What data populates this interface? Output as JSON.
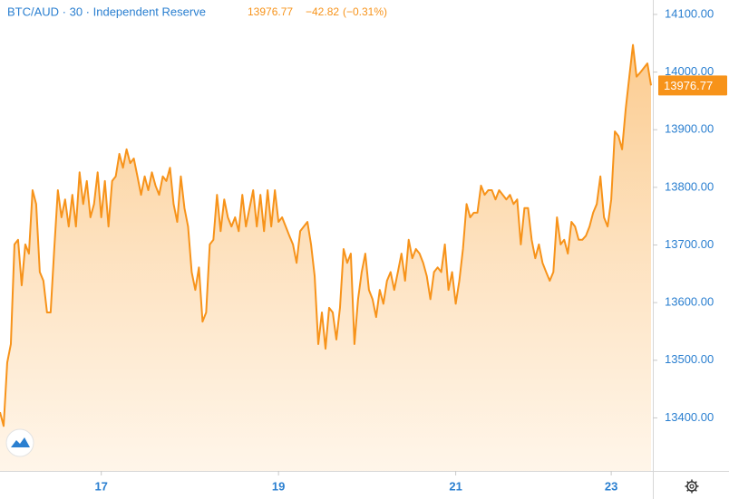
{
  "chart_data": {
    "type": "area",
    "title": "BTC/AUD · 30 · Independent Reserve",
    "change": "−42.82",
    "change_pct": "(−0.31%)",
    "categories": [
      null,
      null,
      null,
      null,
      null,
      null,
      null,
      null,
      null,
      null,
      null,
      null,
      null,
      null,
      null,
      null,
      null,
      null,
      null,
      null,
      null,
      null,
      null,
      null,
      null,
      null,
      null,
      null,
      "17",
      null,
      null,
      null,
      null,
      null,
      null,
      null,
      null,
      null,
      null,
      null,
      null,
      null,
      null,
      null,
      null,
      null,
      null,
      null,
      null,
      null,
      null,
      null,
      null,
      null,
      null,
      null,
      null,
      null,
      null,
      null,
      null,
      null,
      null,
      null,
      null,
      null,
      null,
      null,
      null,
      null,
      null,
      null,
      null,
      null,
      null,
      null,
      null,
      "19",
      null,
      null,
      null,
      null,
      null,
      null,
      null,
      null,
      null,
      null,
      null,
      null,
      null,
      null,
      null,
      null,
      null,
      null,
      null,
      null,
      null,
      null,
      null,
      null,
      null,
      null,
      null,
      null,
      null,
      null,
      null,
      null,
      null,
      null,
      null,
      null,
      null,
      null,
      null,
      null,
      null,
      null,
      null,
      null,
      null,
      null,
      null,
      null,
      "21",
      null,
      null,
      null,
      null,
      null,
      null,
      null,
      null,
      null,
      null,
      null,
      null,
      null,
      null,
      null,
      null,
      null,
      null,
      null,
      null,
      null,
      null,
      null,
      null,
      null,
      null,
      null,
      null,
      null,
      null,
      null,
      null,
      null,
      null,
      null,
      null,
      null,
      null,
      null,
      null,
      null,
      null,
      "23",
      null,
      null,
      null,
      null,
      null,
      null,
      null,
      null,
      null,
      null,
      null
    ],
    "series": [
      {
        "name": "BTC/AUD",
        "color": "#f7931a",
        "fill": "#fbc98a",
        "values": [
          13410,
          13386,
          13496,
          13528,
          13701,
          13709,
          13630,
          13701,
          13685,
          13795,
          13771,
          13653,
          13638,
          13583,
          13583,
          13693,
          13795,
          13748,
          13779,
          13732,
          13787,
          13732,
          13826,
          13771,
          13811,
          13748,
          13771,
          13826,
          13748,
          13811,
          13732,
          13811,
          13819,
          13858,
          13834,
          13866,
          13842,
          13850,
          13819,
          13787,
          13819,
          13795,
          13826,
          13803,
          13787,
          13819,
          13811,
          13834,
          13771,
          13740,
          13819,
          13764,
          13732,
          13653,
          13622,
          13661,
          13567,
          13583,
          13701,
          13709,
          13787,
          13724,
          13779,
          13748,
          13732,
          13748,
          13724,
          13787,
          13732,
          13764,
          13795,
          13732,
          13787,
          13724,
          13795,
          13732,
          13795,
          13740,
          13748,
          13732,
          13716,
          13701,
          13669,
          13724,
          13732,
          13740,
          13701,
          13646,
          13528,
          13583,
          13520,
          13591,
          13583,
          13536,
          13591,
          13693,
          13669,
          13685,
          13528,
          13606,
          13653,
          13685,
          13622,
          13606,
          13575,
          13622,
          13598,
          13638,
          13653,
          13622,
          13653,
          13685,
          13638,
          13709,
          13677,
          13693,
          13685,
          13669,
          13646,
          13606,
          13653,
          13661,
          13653,
          13701,
          13622,
          13653,
          13598,
          13638,
          13693,
          13771,
          13748,
          13756,
          13756,
          13803,
          13787,
          13795,
          13795,
          13779,
          13795,
          13787,
          13779,
          13787,
          13771,
          13779,
          13701,
          13764,
          13764,
          13709,
          13677,
          13701,
          13669,
          13653,
          13638,
          13653,
          13748,
          13701,
          13709,
          13685,
          13740,
          13732,
          13709,
          13709,
          13716,
          13732,
          13756,
          13771,
          13819,
          13748,
          13732,
          13779,
          13897,
          13889,
          13866,
          13936,
          13992,
          14047,
          13992,
          13999,
          14007,
          14015,
          13976.77
        ]
      }
    ],
    "ylim": [
      13308,
      14125
    ],
    "yticks": [
      {
        "value": 13400,
        "label": "13400.00"
      },
      {
        "value": 13500,
        "label": "13500.00"
      },
      {
        "value": 13600,
        "label": "13600.00"
      },
      {
        "value": 13700,
        "label": "13700.00"
      },
      {
        "value": 13800,
        "label": "13800.00"
      },
      {
        "value": 13900,
        "label": "13900.00"
      },
      {
        "value": 14000,
        "label": "14000.00"
      },
      {
        "value": 14100,
        "label": "14100.00"
      }
    ],
    "axis_color": "#2a7fd0"
  }
}
